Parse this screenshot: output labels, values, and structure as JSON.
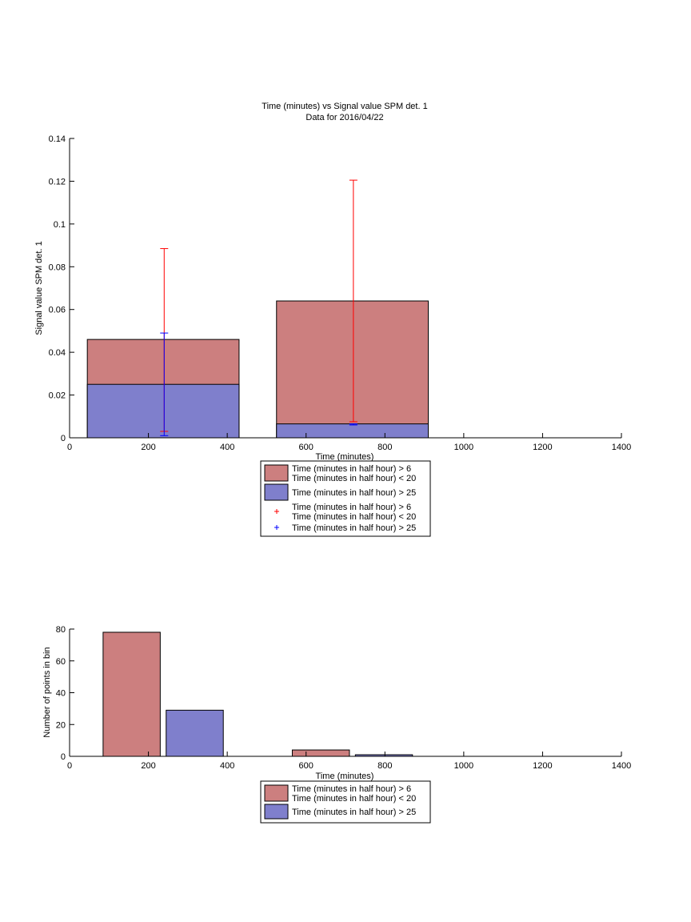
{
  "chart_data": [
    {
      "type": "bar",
      "title": "Time (minutes) vs Signal value SPM det. 1",
      "subtitle": "Data for 2016/04/22",
      "xlabel": "Time (minutes)",
      "ylabel": "Signal value SPM det. 1",
      "xlim": [
        0,
        1400
      ],
      "ylim": [
        0,
        0.14
      ],
      "xticks": [
        "0",
        "200",
        "400",
        "600",
        "800",
        "1000",
        "1200",
        "1400"
      ],
      "yticks": [
        "0",
        "0.02",
        "0.04",
        "0.06",
        "0.08",
        "0.1",
        "0.12",
        "0.14"
      ],
      "series": [
        {
          "name": "Time (minutes in half hour) > 6\nTime (minutes in half hour) < 20",
          "color": "#cc7f7f",
          "bars": [
            {
              "x_start": 45,
              "x_end": 430,
              "value": 0.046
            },
            {
              "x_start": 525,
              "x_end": 910,
              "value": 0.064
            }
          ]
        },
        {
          "name": "Time (minutes in half hour) > 25",
          "color": "#7f7fcc",
          "bars": [
            {
              "x_start": 45,
              "x_end": 430,
              "value": 0.025
            },
            {
              "x_start": 525,
              "x_end": 910,
              "value": 0.0065
            }
          ]
        }
      ],
      "error_bars": [
        {
          "name": "Time (minutes in half hour) > 6\nTime (minutes in half hour) < 20",
          "color": "#ff0000",
          "points": [
            {
              "x": 240,
              "low": 0.003,
              "high": 0.0885
            },
            {
              "x": 720,
              "low": 0.0075,
              "high": 0.1205
            }
          ]
        },
        {
          "name": "Time (minutes in half hour) > 25",
          "color": "#0000ff",
          "points": [
            {
              "x": 240,
              "low": 0.001,
              "high": 0.049
            },
            {
              "x": 720,
              "low": 0.006,
              "high": 0.0065
            }
          ]
        }
      ],
      "legend": {
        "placement": "below",
        "entries": [
          {
            "kind": "patch",
            "color": "#cc7f7f",
            "line1": "Time (minutes in half hour) > 6",
            "line2": "Time (minutes in half hour) < 20"
          },
          {
            "kind": "patch",
            "color": "#7f7fcc",
            "line1": "Time (minutes in half hour) > 25",
            "line2": ""
          },
          {
            "kind": "marker",
            "color": "#ff0000",
            "line1": "Time (minutes in half hour) > 6",
            "line2": "Time (minutes in half hour) < 20"
          },
          {
            "kind": "marker",
            "color": "#0000ff",
            "line1": "Time (minutes in half hour) > 25",
            "line2": ""
          }
        ]
      }
    },
    {
      "type": "bar",
      "title": "",
      "xlabel": "Time (minutes)",
      "ylabel": "Number of points in bin",
      "xlim": [
        0,
        1400
      ],
      "ylim": [
        0,
        80
      ],
      "xticks": [
        "0",
        "200",
        "400",
        "600",
        "800",
        "1000",
        "1200",
        "1400"
      ],
      "yticks": [
        "0",
        "20",
        "40",
        "60",
        "80"
      ],
      "series": [
        {
          "name": "Time (minutes in half hour) > 6\nTime (minutes in half hour) < 20",
          "color": "#cc7f7f",
          "bars": [
            {
              "x_start": 85,
              "x_end": 230,
              "value": 78
            },
            {
              "x_start": 565,
              "x_end": 710,
              "value": 4
            }
          ]
        },
        {
          "name": "Time (minutes in half hour) > 25",
          "color": "#7f7fcc",
          "bars": [
            {
              "x_start": 245,
              "x_end": 390,
              "value": 29
            },
            {
              "x_start": 725,
              "x_end": 870,
              "value": 1
            }
          ]
        }
      ],
      "legend": {
        "placement": "below",
        "entries": [
          {
            "kind": "patch",
            "color": "#cc7f7f",
            "line1": "Time (minutes in half hour) > 6",
            "line2": "Time (minutes in half hour) < 20"
          },
          {
            "kind": "patch",
            "color": "#7f7fcc",
            "line1": "Time (minutes in half hour) > 25",
            "line2": ""
          }
        ]
      }
    }
  ]
}
